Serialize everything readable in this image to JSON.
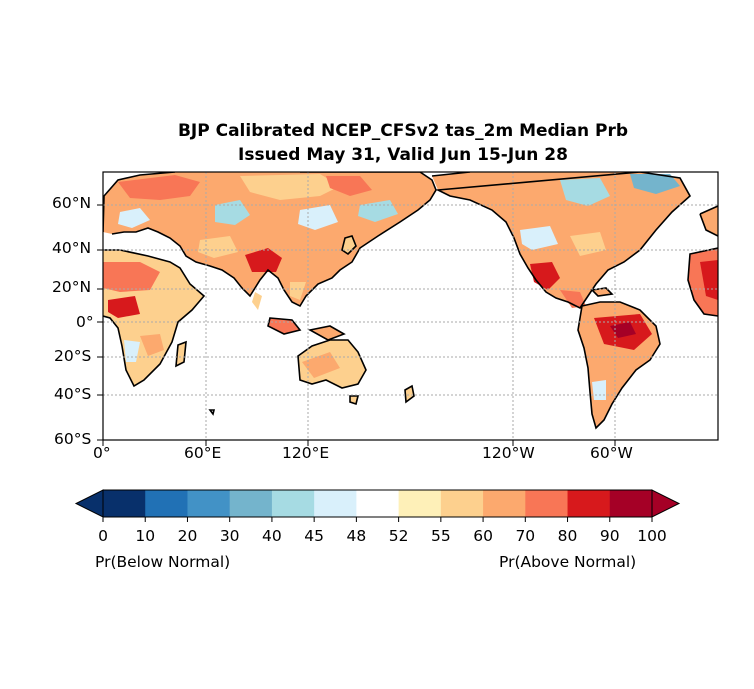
{
  "title": {
    "line1": "BJP Calibrated NCEP_CFSv2 tas_2m Median Prb",
    "line2": "Issued May 31, Valid Jun 15-Jun 28"
  },
  "map": {
    "projection": "PlateCarree, 0° to 360°E",
    "lat_labels": [
      "60°N",
      "40°N",
      "20°N",
      "0°",
      "20°S",
      "40°S",
      "60°S"
    ],
    "lon_labels": [
      "0°",
      "60°E",
      "120°E",
      "120°W",
      "60°W"
    ],
    "gridlines": true,
    "land_fill": "probability of above/below normal temperature",
    "ocean_fill": "#ffffff"
  },
  "colorbar": {
    "ticks": [
      "0",
      "10",
      "20",
      "30",
      "40",
      "45",
      "48",
      "52",
      "55",
      "60",
      "70",
      "80",
      "90",
      "100"
    ],
    "colors": [
      "#08306b",
      "#2171b5",
      "#4292c6",
      "#74b4cc",
      "#a6dbe3",
      "#d9f0fb",
      "#ffffff",
      "#fef0b8",
      "#fdd08e",
      "#fca96e",
      "#f87656",
      "#d7191c",
      "#a50026"
    ],
    "under_color": "#08306b",
    "over_color": "#a50026",
    "left_label": "Pr(Below Normal)",
    "right_label": "Pr(Above Normal)"
  }
}
